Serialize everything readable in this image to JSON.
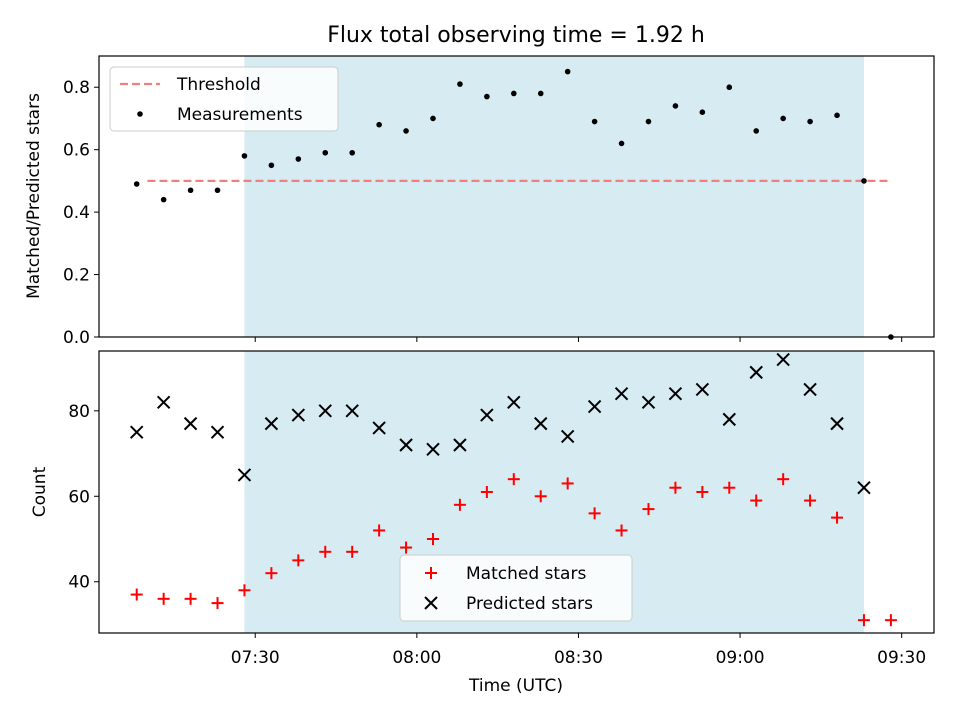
{
  "chart_data": [
    {
      "type": "scatter",
      "title": "Flux total observing time = 1.92 h",
      "xlabel": "",
      "ylabel": "Matched/Predicted stars",
      "ylim": [
        0,
        0.9
      ],
      "yticks": [
        "0.0",
        "0.2",
        "0.4",
        "0.6",
        "0.8"
      ],
      "ytick_values": [
        0,
        0.2,
        0.4,
        0.6,
        0.8
      ],
      "shaded_interval": [
        "07:28",
        "09:23"
      ],
      "shaded_color": "#add8e6",
      "legend_position": "top-left",
      "series": [
        {
          "name": "Threshold",
          "style": "dashed-line",
          "color": "#f08080",
          "x": [
            "07:10",
            "09:28"
          ],
          "y": [
            0.5,
            0.5
          ]
        },
        {
          "name": "Measurements",
          "style": "dot",
          "color": "#000000",
          "x": [
            "07:08",
            "07:13",
            "07:18",
            "07:23",
            "07:28",
            "07:33",
            "07:38",
            "07:43",
            "07:48",
            "07:53",
            "07:58",
            "08:03",
            "08:08",
            "08:13",
            "08:18",
            "08:23",
            "08:28",
            "08:33",
            "08:38",
            "08:43",
            "08:48",
            "08:53",
            "08:58",
            "09:03",
            "09:08",
            "09:13",
            "09:18",
            "09:23",
            "09:28"
          ],
          "y": [
            0.49,
            0.44,
            0.47,
            0.47,
            0.58,
            0.55,
            0.57,
            0.59,
            0.59,
            0.68,
            0.66,
            0.7,
            0.81,
            0.77,
            0.78,
            0.78,
            0.85,
            0.69,
            0.62,
            0.69,
            0.74,
            0.72,
            0.8,
            0.66,
            0.7,
            0.69,
            0.71,
            0.5,
            0.0
          ]
        }
      ]
    },
    {
      "type": "scatter",
      "title": "",
      "xlabel": "Time (UTC)",
      "ylabel": "Count",
      "ylim": [
        28,
        94
      ],
      "yticks": [
        "40",
        "60",
        "80"
      ],
      "ytick_values": [
        40,
        60,
        80
      ],
      "xticks": [
        "07:30",
        "08:00",
        "08:30",
        "09:00",
        "09:30"
      ],
      "xtick_values": [
        "07:30",
        "08:00",
        "08:30",
        "09:00",
        "09:30"
      ],
      "xlim": [
        "07:01",
        "09:36"
      ],
      "shaded_interval": [
        "07:28",
        "09:23"
      ],
      "shaded_color": "#add8e6",
      "legend_position": "bottom-center",
      "series": [
        {
          "name": "Matched stars",
          "marker": "plus",
          "color": "#ff0000",
          "x": [
            "07:08",
            "07:13",
            "07:18",
            "07:23",
            "07:28",
            "07:33",
            "07:38",
            "07:43",
            "07:48",
            "07:53",
            "07:58",
            "08:03",
            "08:08",
            "08:13",
            "08:18",
            "08:23",
            "08:28",
            "08:33",
            "08:38",
            "08:43",
            "08:48",
            "08:53",
            "08:58",
            "09:03",
            "09:08",
            "09:13",
            "09:18",
            "09:23",
            "09:28"
          ],
          "y": [
            37,
            36,
            36,
            35,
            38,
            42,
            45,
            47,
            47,
            52,
            48,
            50,
            58,
            61,
            64,
            60,
            63,
            56,
            52,
            57,
            62,
            61,
            62,
            59,
            64,
            59,
            55,
            31,
            31
          ]
        },
        {
          "name": "Predicted stars",
          "marker": "x",
          "color": "#000000",
          "x": [
            "07:08",
            "07:13",
            "07:18",
            "07:23",
            "07:28",
            "07:33",
            "07:38",
            "07:43",
            "07:48",
            "07:53",
            "07:58",
            "08:03",
            "08:08",
            "08:13",
            "08:18",
            "08:23",
            "08:28",
            "08:33",
            "08:38",
            "08:43",
            "08:48",
            "08:53",
            "08:58",
            "09:03",
            "09:08",
            "09:13",
            "09:18",
            "09:23"
          ],
          "y": [
            75,
            82,
            77,
            75,
            65,
            77,
            79,
            80,
            80,
            76,
            72,
            71,
            72,
            79,
            82,
            77,
            74,
            81,
            84,
            82,
            84,
            85,
            78,
            89,
            92,
            85,
            77,
            62
          ]
        }
      ]
    }
  ]
}
